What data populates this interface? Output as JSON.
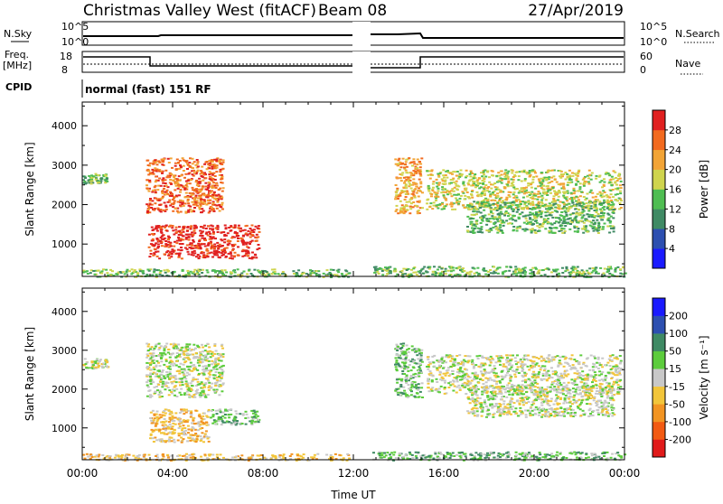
{
  "header": {
    "station": "Christmas Valley West (fitACF)",
    "beam": "Beam 08",
    "date": "27/Apr/2019"
  },
  "status_panels": {
    "nsky_label": "N.Sky",
    "nsky_ticks": [
      "10^5",
      "10^0"
    ],
    "nsearch_label": "N.Search",
    "nsearch_ticks": [
      "10^5",
      "10^0"
    ],
    "freq_label": "Freq.",
    "freq_unit": "[MHz]",
    "freq_ticks": [
      "18",
      "8"
    ],
    "nave_label": "Nave",
    "nave_ticks": [
      "60",
      "0"
    ],
    "cpid_label": "CPID",
    "cpid_value": "normal (fast) 151 RF"
  },
  "chart_data": [
    {
      "type": "heatmap",
      "name": "power",
      "xlabel": "",
      "ylabel": "Slant Range [km]",
      "x_ticks": [
        "00:00",
        "04:00",
        "08:00",
        "12:00",
        "16:00",
        "20:00",
        "00:00"
      ],
      "y_ticks": [
        "1000",
        "2000",
        "3000",
        "4000"
      ],
      "xlim_hours": [
        0,
        24
      ],
      "ylim_km": [
        180,
        4600
      ],
      "colorbar_label": "Power [dB]",
      "colorbar_ticks": [
        "4",
        "8",
        "12",
        "16",
        "20",
        "24",
        "28"
      ],
      "colorbar_colors": [
        "#1a1aff",
        "#2d4fb0",
        "#3f8a64",
        "#4fbd52",
        "#cfd44e",
        "#f2a436",
        "#f26a1f",
        "#e02020"
      ],
      "regions": [
        {
          "t0": 0.0,
          "t1": 1.1,
          "r0": 2550,
          "r1": 2800,
          "level": 3
        },
        {
          "t0": 2.8,
          "t1": 6.2,
          "r0": 1800,
          "r1": 3200,
          "level": 6
        },
        {
          "t0": 2.9,
          "t1": 7.8,
          "r0": 650,
          "r1": 1500,
          "level": 7
        },
        {
          "t0": 13.8,
          "t1": 15.0,
          "r0": 1800,
          "r1": 3200,
          "level": 5
        },
        {
          "t0": 15.2,
          "t1": 23.8,
          "r0": 1900,
          "r1": 2900,
          "level": 4
        },
        {
          "t0": 17.0,
          "t1": 23.5,
          "r0": 1300,
          "r1": 2100,
          "level": 3
        },
        {
          "t0": 0.0,
          "t1": 11.8,
          "r0": 180,
          "r1": 380,
          "level": 3
        },
        {
          "t0": 12.8,
          "t1": 24.0,
          "r0": 180,
          "r1": 450,
          "level": 3
        }
      ]
    },
    {
      "type": "heatmap",
      "name": "velocity",
      "xlabel": "Time UT",
      "ylabel": "Slant Range [km]",
      "x_ticks": [
        "00:00",
        "04:00",
        "08:00",
        "12:00",
        "16:00",
        "20:00",
        "00:00"
      ],
      "y_ticks": [
        "1000",
        "2000",
        "3000",
        "4000"
      ],
      "xlim_hours": [
        0,
        24
      ],
      "ylim_km": [
        180,
        4600
      ],
      "colorbar_label": "Velocity [m s⁻¹]",
      "colorbar_ticks": [
        "200",
        "100",
        "50",
        "15",
        "-15",
        "-50",
        "-100",
        "-200"
      ],
      "colorbar_colors": [
        "#1a1aff",
        "#2d4fb0",
        "#3f8a64",
        "#5ccc3c",
        "#c8c8c8",
        "#f2c53a",
        "#f29422",
        "#f25a12",
        "#e01a1a"
      ],
      "regions": [
        {
          "t0": 0.0,
          "t1": 1.1,
          "r0": 2550,
          "r1": 2800,
          "level": 4
        },
        {
          "t0": 2.8,
          "t1": 6.2,
          "r0": 1800,
          "r1": 3200,
          "level": 4
        },
        {
          "t0": 2.9,
          "t1": 5.6,
          "r0": 650,
          "r1": 1500,
          "level": 5
        },
        {
          "t0": 5.6,
          "t1": 7.8,
          "r0": 1100,
          "r1": 1500,
          "level": 3
        },
        {
          "t0": 13.8,
          "t1": 15.0,
          "r0": 1800,
          "r1": 3200,
          "level": 3
        },
        {
          "t0": 15.2,
          "t1": 23.8,
          "r0": 1900,
          "r1": 2900,
          "level": 4
        },
        {
          "t0": 17.0,
          "t1": 23.5,
          "r0": 1300,
          "r1": 2100,
          "level": 4
        },
        {
          "t0": 0.0,
          "t1": 11.8,
          "r0": 180,
          "r1": 350,
          "level": 5
        },
        {
          "t0": 12.8,
          "t1": 24.0,
          "r0": 180,
          "r1": 400,
          "level": 3
        }
      ]
    }
  ]
}
